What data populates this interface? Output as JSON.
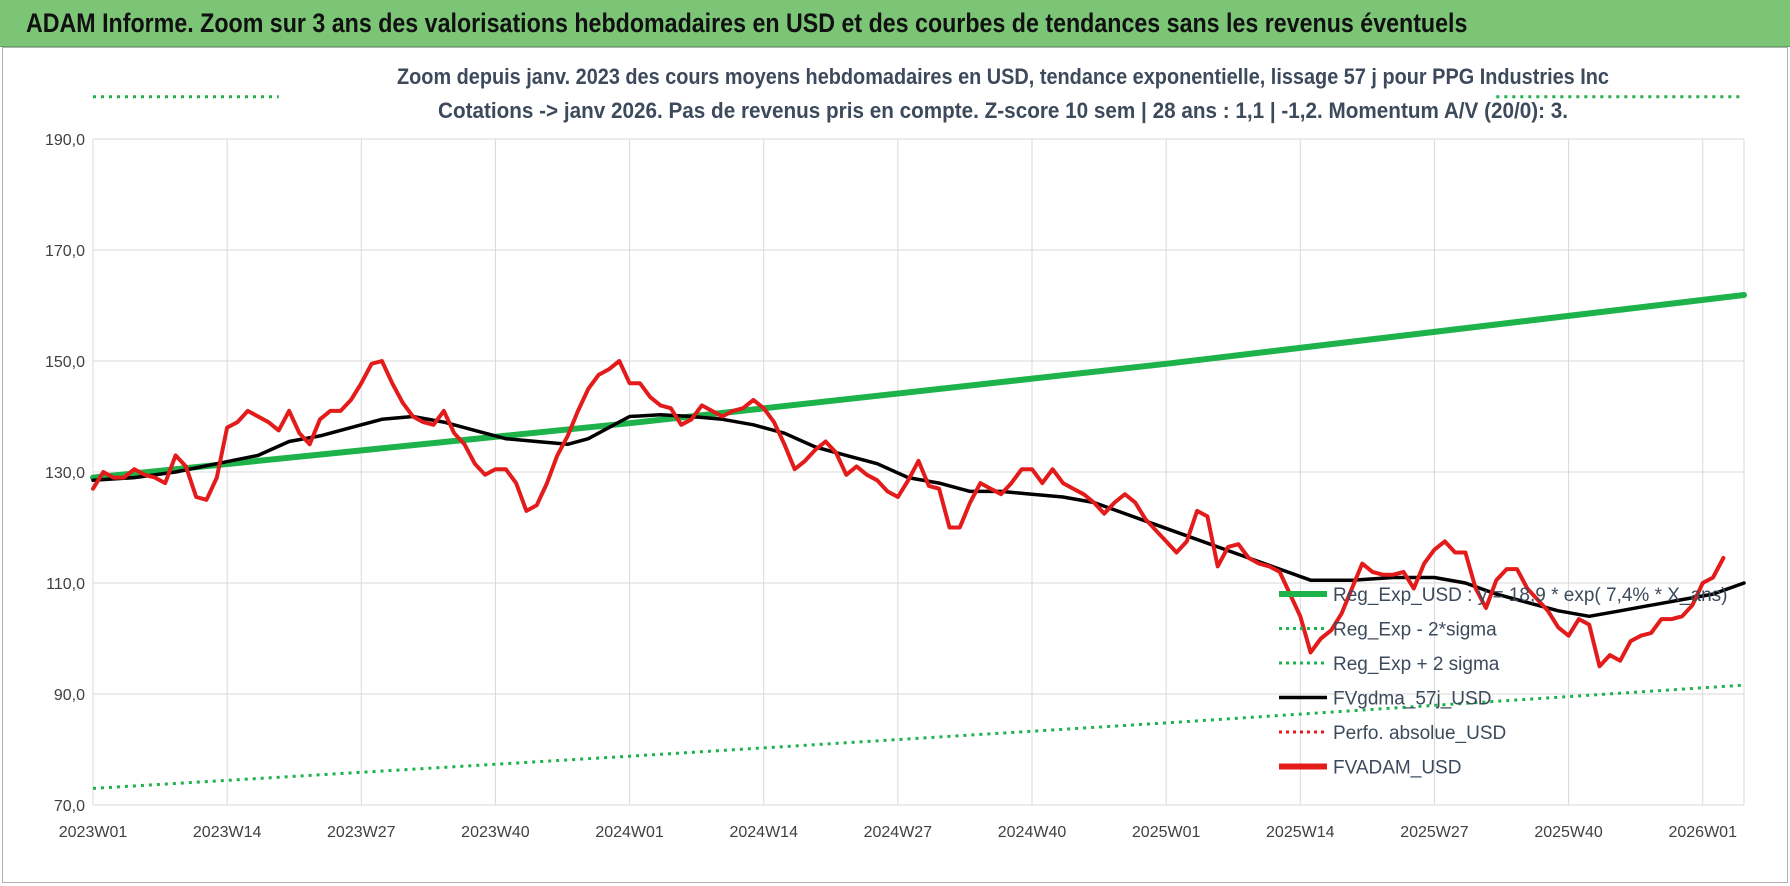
{
  "header": {
    "title": "ADAM Informe. Zoom sur 3 ans des valorisations hebdomadaires en USD et des courbes de tendances sans les revenus éventuels"
  },
  "chart_data": {
    "type": "line",
    "title_line1": "Zoom depuis janv. 2023 des cours moyens hebdomadaires en USD, tendance exponentielle, lissage 57 j pour PPG Industries Inc",
    "title_line2": "Cotations -> janv 2026. Pas de revenus pris en compte. Z-score 10 sem | 28 ans : 1,1 | -1,2. Momentum A/V (20/0): 3.",
    "ylim": [
      70,
      190
    ],
    "yticks": [
      "70,0",
      "90,0",
      "110,0",
      "130,0",
      "150,0",
      "170,0",
      "190,0"
    ],
    "xlim": [
      0,
      160
    ],
    "xtick_labels": [
      "2023W01",
      "2023W14",
      "2023W27",
      "2023W40",
      "2024W01",
      "2024W14",
      "2024W27",
      "2024W40",
      "2025W01",
      "2025W14",
      "2025W27",
      "2025W40",
      "2026W01"
    ],
    "xtick_positions": [
      0,
      13,
      26,
      39,
      52,
      65,
      78,
      91,
      104,
      117,
      130,
      143,
      156
    ],
    "legend": [
      {
        "label": "Reg_Exp_USD : y = 18,9 * exp( 7,4% * X_ans)",
        "color": "#1db34a",
        "style": "thick"
      },
      {
        "label": "Reg_Exp - 2*sigma",
        "color": "#1db34a",
        "style": "dotted"
      },
      {
        "label": "Reg_Exp + 2 sigma",
        "color": "#1db34a",
        "style": "dotted"
      },
      {
        "label": "FVgdma_57j_USD",
        "color": "#000000",
        "style": "solid"
      },
      {
        "label": "Perfo. absolue_USD",
        "color": "#e31b1b",
        "style": "dotted"
      },
      {
        "label": "FVADAM_USD",
        "color": "#e31b1b",
        "style": "thick"
      }
    ],
    "series": [
      {
        "name": "Reg_Exp_USD",
        "color": "#1db34a",
        "width": 6,
        "dash": "",
        "points": [
          [
            0,
            129
          ],
          [
            52,
            138.8
          ],
          [
            104,
            149.5
          ],
          [
            160,
            161.9
          ]
        ]
      },
      {
        "name": "Reg_Exp - 2*sigma",
        "color": "#1db34a",
        "width": 3,
        "dash": "3,5",
        "points": [
          [
            0,
            73
          ],
          [
            52,
            78.8
          ],
          [
            104,
            84.8
          ],
          [
            160,
            91.6
          ]
        ]
      },
      {
        "name": "Reg_Exp + 2 sigma",
        "color": "#1db34a",
        "width": 3,
        "dash": "3,5",
        "points": [
          [
            0,
            197.6
          ],
          [
            18,
            197.6
          ]
        ]
      },
      {
        "name": "Reg_Exp + 2 sigma (right)",
        "color": "#1db34a",
        "width": 3,
        "dash": "3,5",
        "points": [
          [
            136,
            197.6
          ],
          [
            160,
            197.6
          ]
        ]
      },
      {
        "name": "FVgdma_57j_USD",
        "color": "#000000",
        "width": 3.5,
        "dash": "",
        "points": [
          [
            0,
            128.5
          ],
          [
            4,
            129
          ],
          [
            8,
            130
          ],
          [
            12,
            131.5
          ],
          [
            16,
            133
          ],
          [
            19,
            135.5
          ],
          [
            22,
            136.5
          ],
          [
            25,
            138
          ],
          [
            28,
            139.5
          ],
          [
            31,
            140
          ],
          [
            34,
            139
          ],
          [
            37,
            137.5
          ],
          [
            40,
            136
          ],
          [
            43,
            135.5
          ],
          [
            46,
            135
          ],
          [
            48,
            136
          ],
          [
            50,
            138
          ],
          [
            52,
            140
          ],
          [
            55,
            140.3
          ],
          [
            58,
            140
          ],
          [
            61,
            139.5
          ],
          [
            64,
            138.5
          ],
          [
            67,
            137
          ],
          [
            70,
            134.5
          ],
          [
            73,
            133
          ],
          [
            76,
            131.5
          ],
          [
            79,
            129
          ],
          [
            82,
            128
          ],
          [
            85,
            126.5
          ],
          [
            88,
            126.5
          ],
          [
            91,
            126
          ],
          [
            94,
            125.5
          ],
          [
            97,
            124.5
          ],
          [
            100,
            122.5
          ],
          [
            103,
            120.5
          ],
          [
            106,
            118.5
          ],
          [
            109,
            116.5
          ],
          [
            112,
            114.5
          ],
          [
            115,
            112.5
          ],
          [
            118,
            110.5
          ],
          [
            122,
            110.5
          ],
          [
            126,
            111
          ],
          [
            130,
            111
          ],
          [
            133,
            110
          ],
          [
            136,
            108
          ],
          [
            139,
            106.5
          ],
          [
            142,
            105
          ],
          [
            145,
            104
          ],
          [
            148,
            105
          ],
          [
            151,
            106
          ],
          [
            154,
            107
          ],
          [
            157,
            108
          ],
          [
            160,
            110
          ]
        ]
      },
      {
        "name": "FVADAM_USD",
        "color": "#e31b1b",
        "width": 4,
        "dash": "",
        "points": [
          [
            0,
            127
          ],
          [
            1,
            130
          ],
          [
            2,
            129
          ],
          [
            3,
            129
          ],
          [
            4,
            130.5
          ],
          [
            5,
            129.5
          ],
          [
            6,
            129
          ],
          [
            7,
            128
          ],
          [
            8,
            133
          ],
          [
            9,
            131
          ],
          [
            10,
            125.5
          ],
          [
            11,
            125
          ],
          [
            12,
            129
          ],
          [
            13,
            138
          ],
          [
            14,
            139
          ],
          [
            15,
            141
          ],
          [
            16,
            140
          ],
          [
            17,
            139
          ],
          [
            18,
            137.5
          ],
          [
            19,
            141
          ],
          [
            20,
            137
          ],
          [
            21,
            135
          ],
          [
            22,
            139.5
          ],
          [
            23,
            141
          ],
          [
            24,
            141
          ],
          [
            25,
            143
          ],
          [
            26,
            146
          ],
          [
            27,
            149.5
          ],
          [
            28,
            150
          ],
          [
            29,
            146
          ],
          [
            30,
            142.5
          ],
          [
            31,
            140
          ],
          [
            32,
            139
          ],
          [
            33,
            138.5
          ],
          [
            34,
            141
          ],
          [
            35,
            137
          ],
          [
            36,
            135
          ],
          [
            37,
            131.5
          ],
          [
            38,
            129.5
          ],
          [
            39,
            130.5
          ],
          [
            40,
            130.5
          ],
          [
            41,
            128
          ],
          [
            42,
            123
          ],
          [
            43,
            124
          ],
          [
            44,
            128
          ],
          [
            45,
            133
          ],
          [
            46,
            136.5
          ],
          [
            47,
            141
          ],
          [
            48,
            145
          ],
          [
            49,
            147.5
          ],
          [
            50,
            148.5
          ],
          [
            51,
            150
          ],
          [
            52,
            146
          ],
          [
            53,
            146
          ],
          [
            54,
            143.5
          ],
          [
            55,
            142
          ],
          [
            56,
            141.5
          ],
          [
            57,
            138.5
          ],
          [
            58,
            139.5
          ],
          [
            59,
            142
          ],
          [
            60,
            141
          ],
          [
            61,
            140
          ],
          [
            62,
            141
          ],
          [
            63,
            141.5
          ],
          [
            64,
            143
          ],
          [
            65,
            141.5
          ],
          [
            66,
            139
          ],
          [
            67,
            135
          ],
          [
            68,
            130.5
          ],
          [
            69,
            132
          ],
          [
            70,
            134
          ],
          [
            71,
            135.5
          ],
          [
            72,
            133.5
          ],
          [
            73,
            129.5
          ],
          [
            74,
            131
          ],
          [
            75,
            129.5
          ],
          [
            76,
            128.5
          ],
          [
            77,
            126.5
          ],
          [
            78,
            125.5
          ],
          [
            79,
            128.5
          ],
          [
            80,
            132
          ],
          [
            81,
            127.5
          ],
          [
            82,
            127
          ],
          [
            83,
            120
          ],
          [
            84,
            120
          ],
          [
            85,
            124.5
          ],
          [
            86,
            128
          ],
          [
            87,
            127
          ],
          [
            88,
            126
          ],
          [
            89,
            128
          ],
          [
            90,
            130.5
          ],
          [
            91,
            130.5
          ],
          [
            92,
            128
          ],
          [
            93,
            130.5
          ],
          [
            94,
            128
          ],
          [
            95,
            127
          ],
          [
            96,
            126
          ],
          [
            97,
            124.5
          ],
          [
            98,
            122.5
          ],
          [
            99,
            124.5
          ],
          [
            100,
            126
          ],
          [
            101,
            124.5
          ],
          [
            102,
            121.5
          ],
          [
            103,
            119.5
          ],
          [
            104,
            117.5
          ],
          [
            105,
            115.5
          ],
          [
            106,
            117.5
          ],
          [
            107,
            123
          ],
          [
            108,
            122
          ],
          [
            109,
            113
          ],
          [
            110,
            116.5
          ],
          [
            111,
            117
          ],
          [
            112,
            114.5
          ],
          [
            113,
            113.5
          ],
          [
            114,
            113
          ],
          [
            115,
            112
          ],
          [
            116,
            108
          ],
          [
            117,
            104
          ],
          [
            118,
            97.5
          ],
          [
            119,
            100
          ],
          [
            120,
            101.5
          ],
          [
            121,
            104.5
          ],
          [
            122,
            109
          ],
          [
            123,
            113.5
          ],
          [
            124,
            112
          ],
          [
            125,
            111.5
          ],
          [
            126,
            111.5
          ],
          [
            127,
            112
          ],
          [
            128,
            109
          ],
          [
            129,
            113.5
          ],
          [
            130,
            116
          ],
          [
            131,
            117.5
          ],
          [
            132,
            115.5
          ],
          [
            133,
            115.5
          ],
          [
            134,
            109
          ],
          [
            135,
            105.5
          ],
          [
            136,
            110.5
          ],
          [
            137,
            112.5
          ],
          [
            138,
            112.5
          ],
          [
            139,
            109
          ],
          [
            140,
            107
          ],
          [
            141,
            105
          ],
          [
            142,
            102
          ],
          [
            143,
            100.5
          ],
          [
            144,
            103.5
          ],
          [
            145,
            102.5
          ],
          [
            146,
            95
          ],
          [
            147,
            97
          ],
          [
            148,
            96
          ],
          [
            149,
            99.5
          ],
          [
            150,
            100.5
          ],
          [
            151,
            101
          ],
          [
            152,
            103.5
          ],
          [
            153,
            103.5
          ],
          [
            154,
            104
          ],
          [
            155,
            106
          ],
          [
            156,
            110
          ],
          [
            157,
            111
          ],
          [
            158,
            114.5
          ]
        ]
      }
    ]
  }
}
